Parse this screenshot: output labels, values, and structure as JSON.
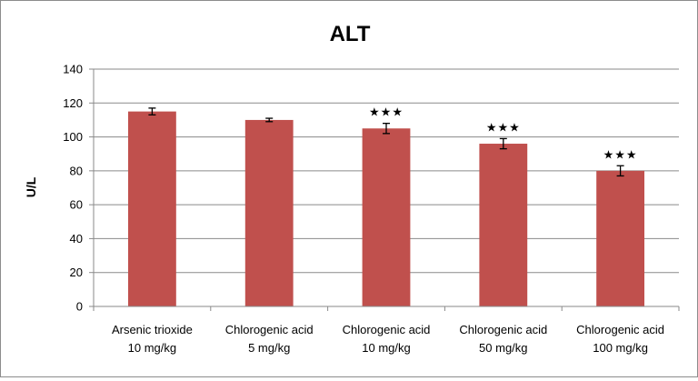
{
  "chart_data": {
    "type": "bar",
    "title": "ALT",
    "xlabel": "",
    "ylabel": "U/L",
    "ylim": [
      0,
      140
    ],
    "yticks": [
      "0",
      "20",
      "40",
      "60",
      "80",
      "100",
      "120",
      "140"
    ],
    "grid": true,
    "legend": "none",
    "bar_color": "#c0504d",
    "categories": [
      [
        "Arsenic trioxide",
        "10 mg/kg"
      ],
      [
        "Chlorogenic acid",
        "5 mg/kg"
      ],
      [
        "Chlorogenic acid",
        "10 mg/kg"
      ],
      [
        "Chlorogenic acid",
        "50 mg/kg"
      ],
      [
        "Chlorogenic acid",
        "100 mg/kg"
      ]
    ],
    "values": [
      115,
      110,
      105,
      96,
      80
    ],
    "errors": [
      2,
      1,
      3,
      3,
      3
    ],
    "annotations": [
      "",
      "",
      "★★★",
      "★★★",
      "★★★"
    ]
  }
}
